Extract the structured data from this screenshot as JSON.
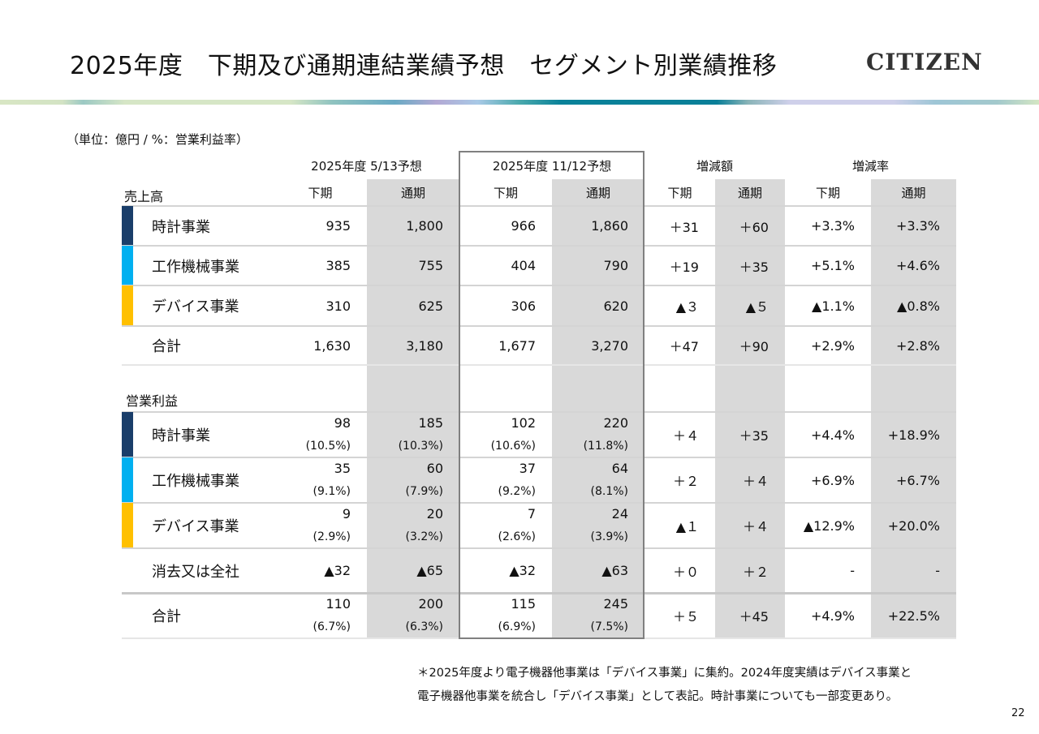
{
  "header": {
    "title": "2025年度　下期及び通期連結業績予想　セグメント別業績推移",
    "logo": "CITIZEN"
  },
  "unit_note": "（単位：億円 / %：営業利益率）",
  "colors": {
    "watch": "#1a3e6a",
    "machine": "#00b0f0",
    "device": "#ffc000",
    "shade": "#d9d9d9"
  },
  "columns": {
    "groups": [
      "2025年度 5/13予想",
      "2025年度 11/12予想",
      "増減額",
      "増減率"
    ],
    "sub": [
      "下期",
      "通期",
      "下期",
      "通期",
      "下期",
      "通期",
      "下期",
      "通期"
    ]
  },
  "sales": {
    "label": "売上高",
    "rows": [
      {
        "name": "時計事業",
        "bar": "watch",
        "values": [
          "935",
          "1,800",
          "966",
          "1,860",
          "＋31",
          "＋60",
          "+3.3%",
          "+3.3%"
        ]
      },
      {
        "name": "工作機械事業",
        "bar": "machine",
        "values": [
          "385",
          "755",
          "404",
          "790",
          "＋19",
          "＋35",
          "+5.1%",
          "+4.6%"
        ]
      },
      {
        "name": "デバイス事業",
        "bar": "device",
        "values": [
          "310",
          "625",
          "306",
          "620",
          "▲３",
          "▲５",
          "▲1.1%",
          "▲0.8%"
        ]
      },
      {
        "name": "合計",
        "bar": "",
        "values": [
          "1,630",
          "3,180",
          "1,677",
          "3,270",
          "＋47",
          "＋90",
          "+2.9%",
          "+2.8%"
        ]
      }
    ]
  },
  "operating_profit": {
    "label": "営業利益",
    "rows": [
      {
        "name": "時計事業",
        "bar": "watch",
        "values": [
          "98",
          "185",
          "102",
          "220",
          "＋４",
          "＋35",
          "+4.4%",
          "+18.9%"
        ],
        "margins": [
          "(10.5%)",
          "(10.3%)",
          "(10.6%)",
          "(11.8%)"
        ]
      },
      {
        "name": "工作機械事業",
        "bar": "machine",
        "values": [
          "35",
          "60",
          "37",
          "64",
          "＋２",
          "＋４",
          "+6.9%",
          "+6.7%"
        ],
        "margins": [
          "(9.1%)",
          "(7.9%)",
          "(9.2%)",
          "(8.1%)"
        ]
      },
      {
        "name": "デバイス事業",
        "bar": "device",
        "values": [
          "9",
          "20",
          "7",
          "24",
          "▲１",
          "＋４",
          "▲12.9%",
          "+20.0%"
        ],
        "margins": [
          "(2.9%)",
          "(3.2%)",
          "(2.6%)",
          "(3.9%)"
        ]
      },
      {
        "name": "消去又は全社",
        "bar": "",
        "values": [
          "▲32",
          "▲65",
          "▲32",
          "▲63",
          "＋０",
          "＋２",
          "-",
          "-"
        ]
      },
      {
        "name": "合計",
        "bar": "",
        "values": [
          "110",
          "200",
          "115",
          "245",
          "＋５",
          "＋45",
          "+4.9%",
          "+22.5%"
        ],
        "margins": [
          "(6.7%)",
          "(6.3%)",
          "(6.9%)",
          "(7.5%)"
        ]
      }
    ]
  },
  "footnote": [
    "＊2025年度より電子機器他事業は「デバイス事業」に集約。2024年度実績はデバイス事業と",
    "電子機器他事業を統合し「デバイス事業」として表記。時計事業についても一部変更あり。"
  ],
  "page_number": "22"
}
